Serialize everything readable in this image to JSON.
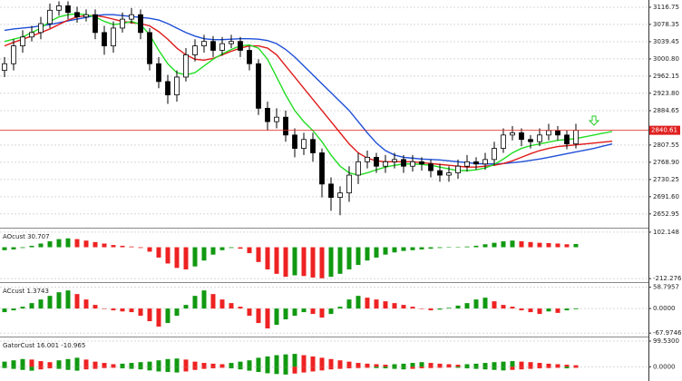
{
  "chart_data": [
    {
      "type": "candlestick",
      "open": [
        2975,
        2990,
        3030,
        3050,
        3060,
        3080,
        3110,
        3120,
        3105,
        3095,
        3100,
        3060,
        3030,
        3070,
        3090,
        3100,
        3060,
        2990,
        2950,
        2920,
        2960,
        3010,
        3030,
        3040,
        3020,
        3035,
        3040,
        3020,
        2990,
        2890,
        2860,
        2870,
        2830,
        2800,
        2820,
        2790,
        2720,
        2690,
        2700,
        2740,
        2770,
        2780,
        2760,
        2770,
        2775,
        2760,
        2770,
        2765,
        2750,
        2740,
        2745,
        2760,
        2770,
        2765,
        2775,
        2800,
        2830,
        2835,
        2820,
        2815,
        2830,
        2840,
        2830,
        2810
      ],
      "high": [
        3005,
        3045,
        3065,
        3075,
        3095,
        3125,
        3130,
        3130,
        3118,
        3112,
        3112,
        3075,
        3085,
        3105,
        3115,
        3112,
        3070,
        3005,
        2965,
        2975,
        3025,
        3045,
        3055,
        3052,
        3050,
        3055,
        3050,
        3030,
        3000,
        2905,
        2890,
        2885,
        2845,
        2835,
        2835,
        2800,
        2735,
        2715,
        2760,
        2790,
        2795,
        2790,
        2785,
        2790,
        2785,
        2785,
        2780,
        2775,
        2765,
        2760,
        2775,
        2785,
        2780,
        2790,
        2815,
        2845,
        2850,
        2845,
        2830,
        2845,
        2855,
        2850,
        2840,
        2855
      ],
      "low": [
        2960,
        2975,
        3015,
        3040,
        3045,
        3070,
        3098,
        3090,
        3082,
        3085,
        3045,
        3010,
        3015,
        3060,
        3080,
        3045,
        2975,
        2935,
        2900,
        2905,
        2950,
        2995,
        3015,
        3005,
        3008,
        3025,
        3005,
        2975,
        2875,
        2840,
        2845,
        2815,
        2780,
        2785,
        2770,
        2690,
        2660,
        2650,
        2680,
        2720,
        2755,
        2745,
        2745,
        2755,
        2745,
        2748,
        2750,
        2735,
        2725,
        2725,
        2732,
        2748,
        2752,
        2752,
        2762,
        2790,
        2818,
        2805,
        2800,
        2805,
        2818,
        2818,
        2798,
        2800
      ],
      "close": [
        2990,
        3030,
        3050,
        3060,
        3080,
        3110,
        3120,
        3105,
        3095,
        3100,
        3060,
        3030,
        3070,
        3090,
        3100,
        3060,
        2990,
        2950,
        2920,
        2960,
        3010,
        3030,
        3040,
        3020,
        3035,
        3040,
        3020,
        2990,
        2890,
        2860,
        2870,
        2830,
        2800,
        2820,
        2790,
        2720,
        2690,
        2700,
        2740,
        2770,
        2780,
        2760,
        2770,
        2775,
        2760,
        2770,
        2765,
        2750,
        2740,
        2745,
        2760,
        2770,
        2765,
        2775,
        2800,
        2830,
        2835,
        2820,
        2815,
        2830,
        2840,
        2830,
        2810,
        2840.61
      ],
      "up_color": "#ffffff",
      "down_color": "#000000",
      "series": [
        {
          "color": "#1f4fd8",
          "values": [
            3065,
            3068,
            3070,
            3072,
            3075,
            3078,
            3082,
            3086,
            3090,
            3094,
            3098,
            3100,
            3100,
            3098,
            3096,
            3094,
            3092,
            3088,
            3080,
            3070,
            3060,
            3052,
            3046,
            3044,
            3044,
            3045,
            3046,
            3046,
            3045,
            3042,
            3035,
            3022,
            3005,
            2985,
            2965,
            2945,
            2925,
            2905,
            2885,
            2860,
            2835,
            2812,
            2795,
            2785,
            2780,
            2778,
            2776,
            2775,
            2774,
            2772,
            2770,
            2768,
            2766,
            2765,
            2765,
            2766,
            2768,
            2770,
            2773,
            2776,
            2780,
            2784,
            2788,
            2792,
            2796,
            2800,
            2805,
            2810
          ]
        },
        {
          "color": "#e01a1a",
          "values": [
            3030,
            3038,
            3045,
            3052,
            3060,
            3068,
            3078,
            3088,
            3095,
            3098,
            3098,
            3095,
            3090,
            3085,
            3082,
            3080,
            3075,
            3062,
            3045,
            3025,
            3010,
            3000,
            2998,
            3002,
            3010,
            3018,
            3025,
            3030,
            3030,
            3025,
            3010,
            2985,
            2960,
            2935,
            2910,
            2885,
            2860,
            2835,
            2810,
            2790,
            2778,
            2772,
            2770,
            2770,
            2770,
            2770,
            2768,
            2766,
            2764,
            2762,
            2760,
            2758,
            2758,
            2760,
            2762,
            2766,
            2772,
            2780,
            2788,
            2795,
            2800,
            2804,
            2806,
            2808,
            2810,
            2812,
            2814,
            2816
          ]
        },
        {
          "color": "#22dd22",
          "values": [
            3040,
            3045,
            3050,
            3060,
            3070,
            3085,
            3095,
            3100,
            3102,
            3100,
            3095,
            3085,
            3078,
            3080,
            3085,
            3078,
            3055,
            3020,
            2990,
            2970,
            2965,
            2970,
            2985,
            3000,
            3012,
            3022,
            3030,
            3032,
            3025,
            3000,
            2960,
            2920,
            2885,
            2860,
            2840,
            2815,
            2785,
            2760,
            2745,
            2740,
            2745,
            2752,
            2758,
            2762,
            2765,
            2765,
            2764,
            2762,
            2758,
            2754,
            2750,
            2750,
            2752,
            2756,
            2764,
            2776,
            2790,
            2800,
            2806,
            2810,
            2814,
            2818,
            2820,
            2822,
            2826,
            2830,
            2834,
            2838
          ]
        }
      ],
      "current_price": 2840.61,
      "current_price_color": "#e02020",
      "ylim": [
        2622,
        3133
      ],
      "yticks": [
        3116.75,
        3078.35,
        3039.45,
        {
          "value": 3000.8,
          "label": "3000.80"
        },
        2962.15,
        {
          "value": 2923.8,
          "label": "2923.80"
        },
        2884.65,
        2807.55,
        {
          "value": 2768.9,
          "label": "2768.90"
        },
        2730.25,
        {
          "value": 2691.6,
          "label": "2691.60"
        },
        2652.95
      ],
      "grid": true
    },
    {
      "type": "bar",
      "title": "AOcust 30.707",
      "values": [
        -20,
        -15,
        -5,
        10,
        25,
        40,
        55,
        60,
        55,
        45,
        35,
        25,
        15,
        10,
        5,
        -5,
        -30,
        -70,
        -110,
        -140,
        -150,
        -130,
        -90,
        -50,
        -20,
        -5,
        -10,
        -40,
        -100,
        -150,
        -180,
        -200,
        -190,
        -195,
        -205,
        -210,
        -200,
        -180,
        -150,
        -120,
        -90,
        -70,
        -50,
        -35,
        -25,
        -20,
        -15,
        -10,
        -5,
        -2,
        0,
        5,
        10,
        20,
        30,
        40,
        45,
        40,
        35,
        30,
        28,
        25,
        20,
        22
      ],
      "up_color": "#119911",
      "down_color": "#ee2222",
      "ylim": [
        -230,
        120
      ],
      "yticks": [
        102.148,
        -212.276
      ],
      "grid": true
    },
    {
      "type": "bar",
      "title": "ACcust 1.3743",
      "values": [
        -10,
        -5,
        5,
        15,
        25,
        35,
        45,
        50,
        40,
        25,
        10,
        0,
        -5,
        -8,
        -10,
        -20,
        -35,
        -50,
        -40,
        -20,
        10,
        35,
        50,
        40,
        25,
        15,
        5,
        -20,
        -40,
        -55,
        -45,
        -30,
        -20,
        -10,
        -15,
        -25,
        -15,
        5,
        25,
        35,
        30,
        25,
        20,
        15,
        10,
        5,
        0,
        -5,
        -3,
        2,
        8,
        15,
        25,
        30,
        20,
        10,
        5,
        -5,
        -10,
        -15,
        -8,
        -12,
        -5,
        -2
      ],
      "up_color": "#119911",
      "down_color": "#ee2222",
      "ylim": [
        -75,
        68
      ],
      "yticks": [
        58.7957,
        {
          "value": 0,
          "label": "0.0000"
        },
        -67.9746
      ],
      "grid": true
    },
    {
      "type": "bar",
      "title": "GatorCust 16.001 -10.965",
      "series": [
        {
          "values": [
            20,
            25,
            30,
            28,
            22,
            18,
            25,
            30,
            35,
            28,
            20,
            15,
            10,
            12,
            15,
            18,
            20,
            25,
            30,
            32,
            28,
            20,
            15,
            12,
            10,
            15,
            20,
            25,
            35,
            40,
            45,
            48,
            50,
            45,
            40,
            35,
            30,
            25,
            20,
            15,
            12,
            10,
            8,
            10,
            12,
            15,
            18,
            15,
            12,
            10,
            8,
            10,
            12,
            15,
            18,
            20,
            22,
            20,
            18,
            15,
            12,
            10,
            8,
            6
          ]
        },
        {
          "values": [
            -5,
            -8,
            -12,
            -15,
            -10,
            -6,
            -8,
            -12,
            -15,
            -10,
            -8,
            -5,
            -4,
            -6,
            -8,
            -10,
            -14,
            -18,
            -20,
            -22,
            -18,
            -12,
            -8,
            -6,
            -4,
            -6,
            -10,
            -15,
            -20,
            -25,
            -28,
            -30,
            -26,
            -22,
            -18,
            -14,
            -10,
            -8,
            -6,
            -5,
            -4,
            -5,
            -6,
            -8,
            -10,
            -8,
            -6,
            -5,
            -4,
            -3,
            -4,
            -6,
            -8,
            -10,
            -12,
            -14,
            -12,
            -10,
            -8,
            -6,
            -5,
            -4,
            -6,
            -4
          ]
        }
      ],
      "up_color": "#119911",
      "down_color": "#ee2222",
      "ylim": [
        -55,
        110
      ],
      "yticks": [
        {
          "value": 99.53,
          "label": "99.5300"
        },
        {
          "value": 0,
          "label": "0.0000"
        }
      ],
      "grid": true
    }
  ]
}
